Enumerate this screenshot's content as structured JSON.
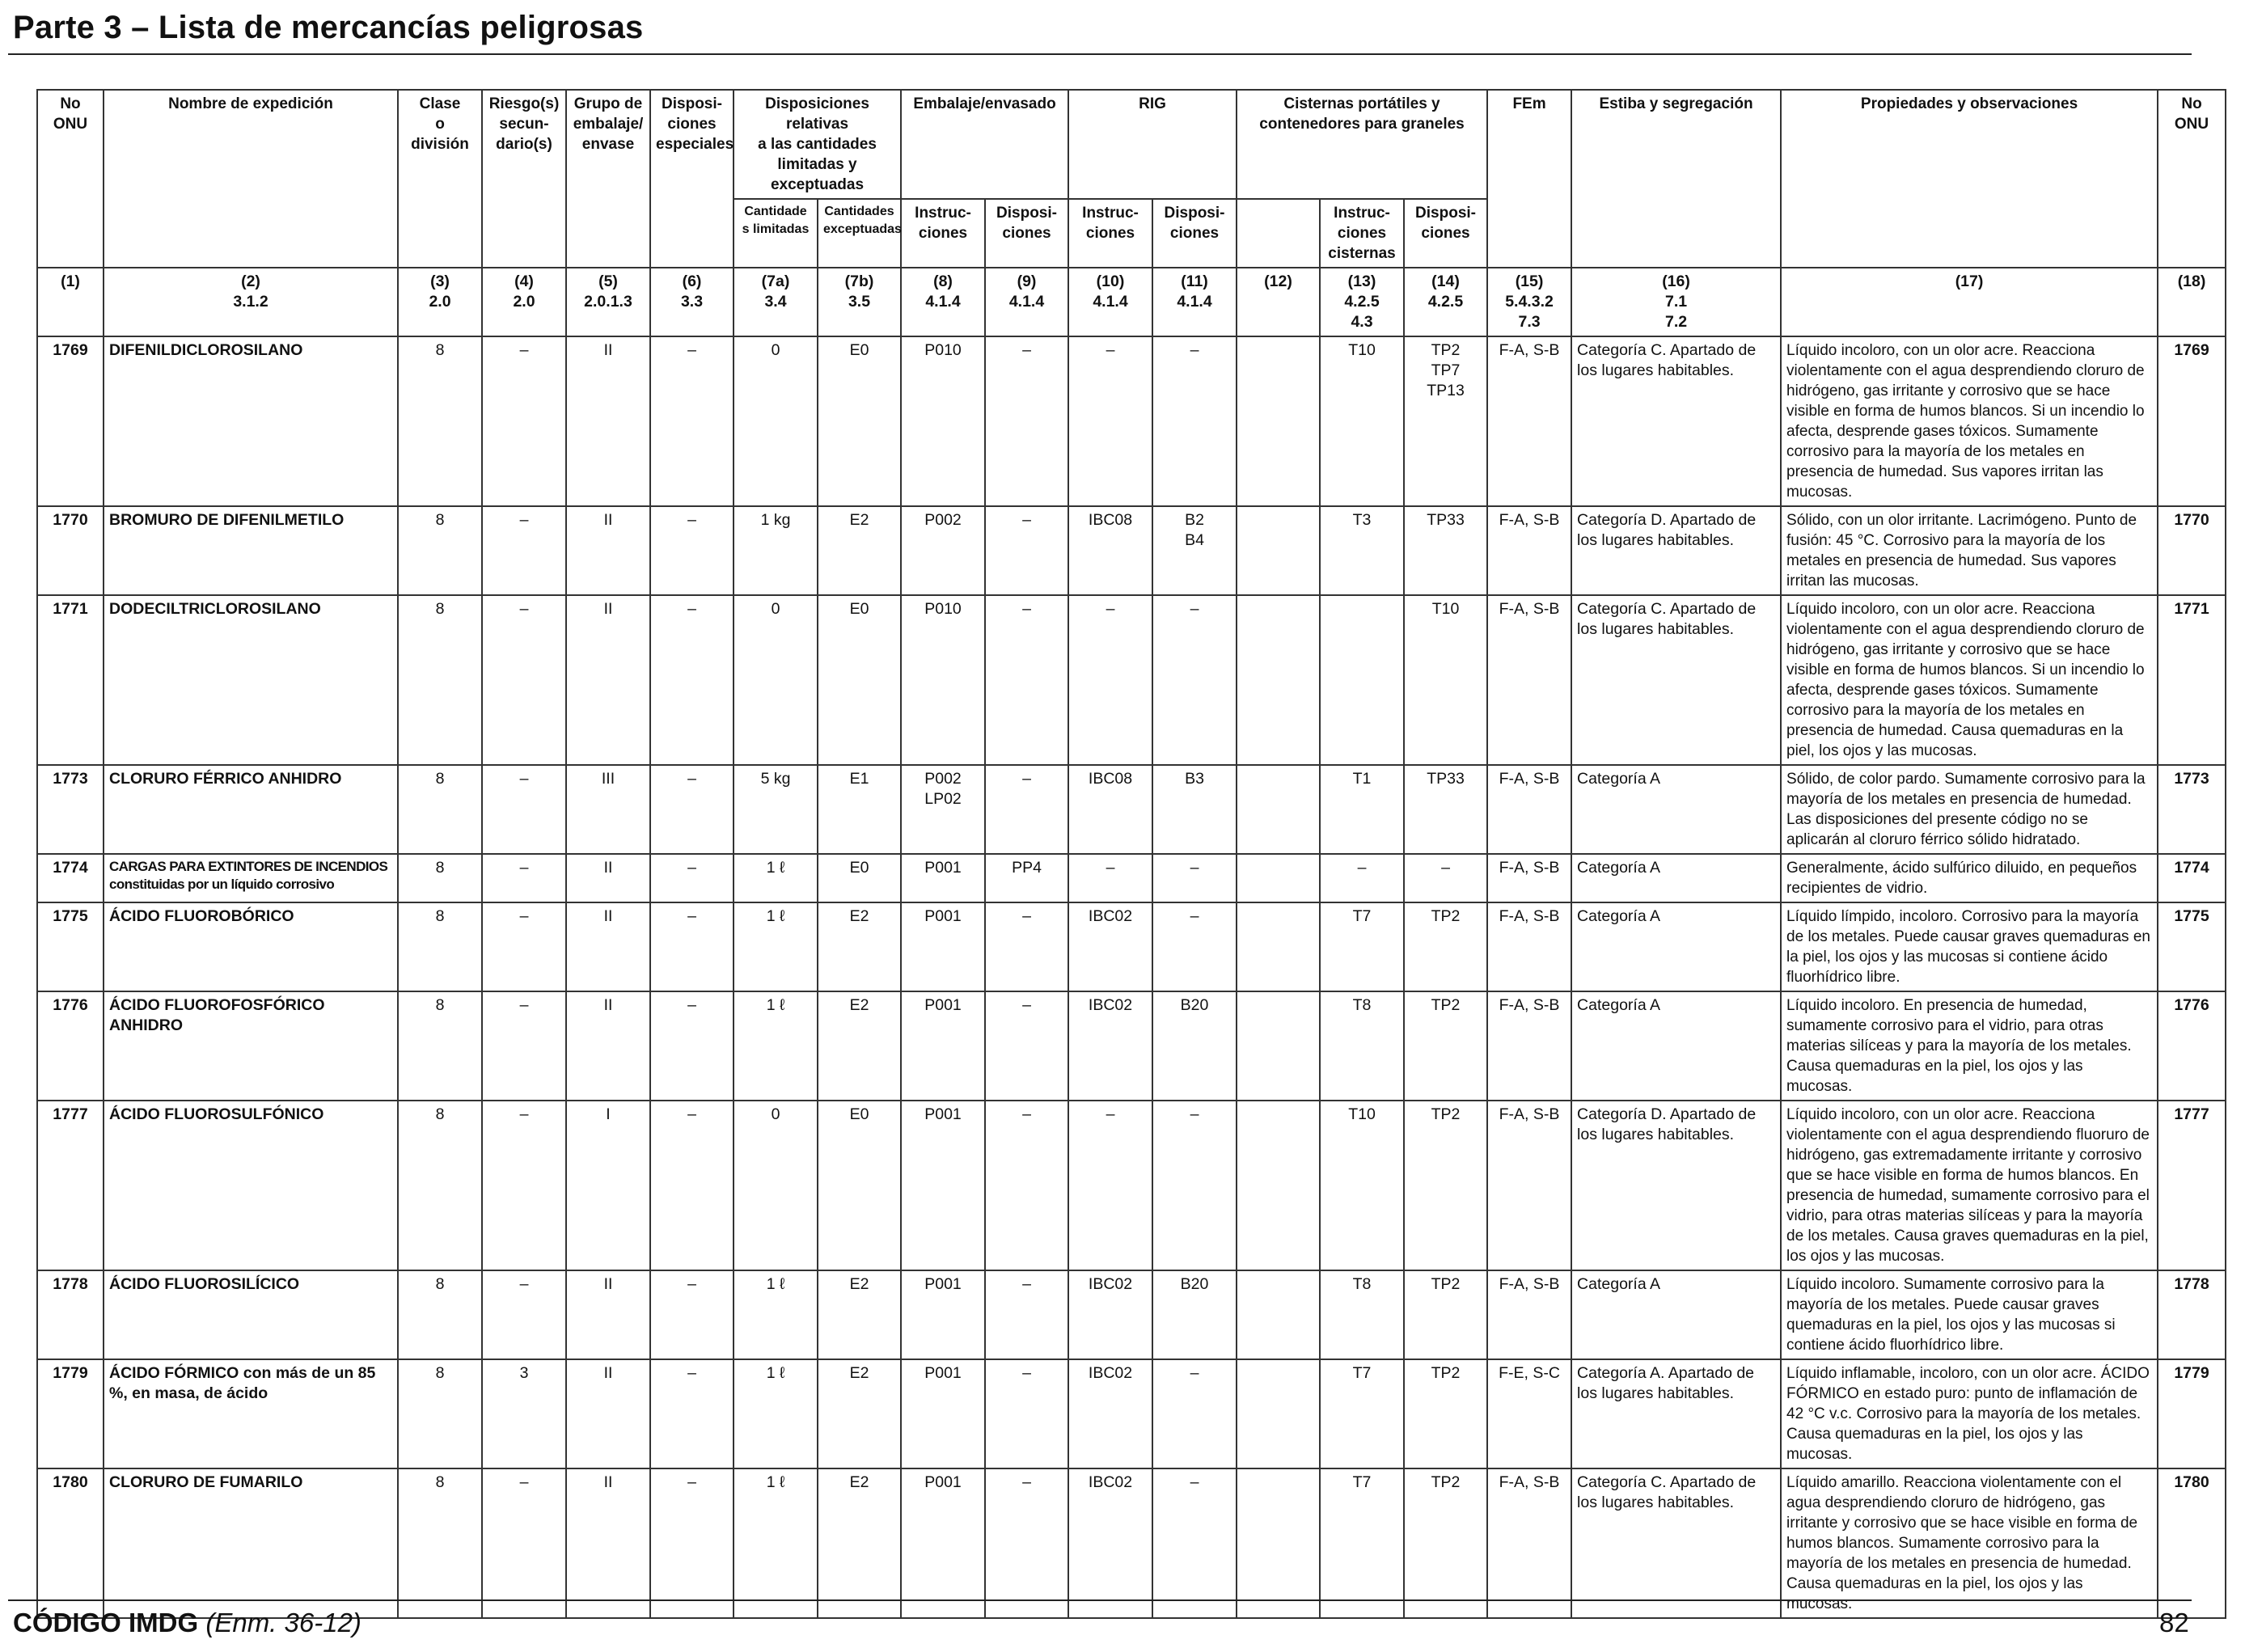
{
  "page_title": "Parte 3 – Lista de mercancías peligrosas",
  "headers": {
    "un_no": "No\nONU",
    "shipping_name": "Nombre de expedición",
    "class": "Clase\no\ndivisión",
    "subsidiary_risk": "Riesgo(s)\nsecun-\ndario(s)",
    "packing_group": "Grupo de\nembalaje/\nenvase",
    "special_provisions": "Disposi-\nciones\nespeciales",
    "limited_excepted": "Disposiciones relativas\na las cantidades\nlimitadas y exceptuadas",
    "limited_quantities": "Cantidade\ns limitadas",
    "excepted_quantities": "Cantidades\nexceptuadas",
    "packing": "Embalaje/envasado",
    "packing_instructions": "Instruc-\nciones",
    "packing_provisions": "Disposi-\nciones",
    "ibc": "RIG",
    "ibc_instructions": "Instruc-\nciones",
    "ibc_provisions": "Disposi-\nciones",
    "tanks": "Cisternas portátiles y\ncontenedores para graneles",
    "tank_instructions": "Instruc-\nciones\ncisternas",
    "tank_provisions": "Disposi-\nciones",
    "ems": "FEm",
    "stowage": "Estiba y segregación",
    "properties": "Propiedades y observaciones",
    "un_no_end": "No\nONU"
  },
  "column_numbers": [
    "(1)",
    "(2)\n3.1.2",
    "(3)\n2.0",
    "(4)\n2.0",
    "(5)\n2.0.1.3",
    "(6)\n3.3",
    "(7a)\n3.4",
    "(7b)\n3.5",
    "(8)\n4.1.4",
    "(9)\n4.1.4",
    "(10)\n4.1.4",
    "(11)\n4.1.4",
    "(12)",
    "(13)\n4.2.5\n4.3",
    "(14)\n4.2.5",
    "(15)\n5.4.3.2\n7.3",
    "(16)\n7.1\n7.2",
    "(17)",
    "(18)"
  ],
  "rows": [
    {
      "un": "1769",
      "name": "DIFENILDICLOROSILANO",
      "class": "8",
      "sub": "–",
      "pg": "II",
      "sp": "–",
      "lq": "0",
      "eq": "E0",
      "pi": "P010",
      "pp": "–",
      "ibc_i": "–",
      "ibc_p": "–",
      "c12": "",
      "tank_i": "T10",
      "tank_p": "TP2\nTP7\nTP13",
      "ems": "F-A, S-B",
      "stow": "Categoría C. Apartado de los lugares habitables.",
      "props": "Líquido incoloro, con un olor acre. Reacciona violentamente con el agua desprendiendo cloruro de hidrógeno, gas irritante y corrosivo que se hace visible en forma de humos blancos. Si un incendio lo afecta, desprende gases tóxicos. Sumamente corrosivo para la mayoría de los metales en presencia de humedad. Sus vapores irritan las mucosas.",
      "un_end": "1769"
    },
    {
      "un": "1770",
      "name": "BROMURO DE DIFENILMETILO",
      "class": "8",
      "sub": "–",
      "pg": "II",
      "sp": "–",
      "lq": "1 kg",
      "eq": "E2",
      "pi": "P002",
      "pp": "–",
      "ibc_i": "IBC08",
      "ibc_p": "B2\nB4",
      "c12": "",
      "tank_i": "T3",
      "tank_p": "TP33",
      "ems": "F-A, S-B",
      "stow": "Categoría D. Apartado de los lugares habitables.",
      "props": "Sólido, con un olor irritante. Lacrimógeno. Punto de fusión: 45 °C. Corrosivo para la mayoría de los metales en presencia de humedad. Sus vapores irritan las mucosas.",
      "un_end": "1770"
    },
    {
      "un": "1771",
      "name": "DODECILTRICLOROSILANO",
      "class": "8",
      "sub": "–",
      "pg": "II",
      "sp": "–",
      "lq": "0",
      "eq": "E0",
      "pi": "P010",
      "pp": "–",
      "ibc_i": "–",
      "ibc_p": "–",
      "c12": "",
      "tank_i": "",
      "tank_p": "T10",
      "ems": "F-A, S-B",
      "stow": "Categoría C. Apartado de los lugares habitables.",
      "props": "Líquido incoloro, con un olor acre. Reacciona violentamente con el agua desprendiendo cloruro de hidrógeno, gas irritante y corrosivo que se hace visible en forma de humos blancos. Si un incendio lo afecta, desprende gases tóxicos. Sumamente corrosivo para la mayoría de los metales en presencia de humedad. Causa quemaduras en la piel, los ojos y las mucosas.",
      "un_end": "1771"
    },
    {
      "un": "1773",
      "name": "CLORURO FÉRRICO ANHIDRO",
      "class": "8",
      "sub": "–",
      "pg": "III",
      "sp": "–",
      "lq": "5 kg",
      "eq": "E1",
      "pi": "P002\nLP02",
      "pp": "–",
      "ibc_i": "IBC08",
      "ibc_p": "B3",
      "c12": "",
      "tank_i": "T1",
      "tank_p": "TP33",
      "ems": "F-A, S-B",
      "stow": "Categoría A",
      "props": "Sólido, de color pardo. Sumamente corrosivo para la mayoría de los metales en presencia de humedad. Las disposiciones del presente código no se aplicarán al cloruro férrico sólido hidratado.",
      "un_end": "1773"
    },
    {
      "un": "1774",
      "name": "CARGAS PARA EXTINTORES DE INCENDIOS constituidas por un líquido corrosivo",
      "class": "8",
      "sub": "–",
      "pg": "II",
      "sp": "–",
      "lq": "1 ℓ",
      "eq": "E0",
      "pi": "P001",
      "pp": "PP4",
      "ibc_i": "–",
      "ibc_p": "–",
      "c12": "",
      "tank_i": "–",
      "tank_p": "–",
      "ems": "F-A, S-B",
      "stow": "Categoría A",
      "props": "Generalmente, ácido sulfúrico diluido, en pequeños recipientes de vidrio.",
      "un_end": "1774"
    },
    {
      "un": "1775",
      "name": "ÁCIDO FLUOROBÓRICO",
      "class": "8",
      "sub": "–",
      "pg": "II",
      "sp": "–",
      "lq": "1 ℓ",
      "eq": "E2",
      "pi": "P001",
      "pp": "–",
      "ibc_i": "IBC02",
      "ibc_p": "–",
      "c12": "",
      "tank_i": "T7",
      "tank_p": "TP2",
      "ems": "F-A, S-B",
      "stow": "Categoría A",
      "props": "Líquido límpido, incoloro. Corrosivo para la mayoría de los metales. Puede causar graves quemaduras en la piel, los ojos y las mucosas si contiene ácido fluorhídrico libre.",
      "un_end": "1775"
    },
    {
      "un": "1776",
      "name": "ÁCIDO FLUOROFOSFÓRICO ANHIDRO",
      "class": "8",
      "sub": "–",
      "pg": "II",
      "sp": "–",
      "lq": "1 ℓ",
      "eq": "E2",
      "pi": "P001",
      "pp": "–",
      "ibc_i": "IBC02",
      "ibc_p": "B20",
      "c12": "",
      "tank_i": "T8",
      "tank_p": "TP2",
      "ems": "F-A, S-B",
      "stow": "Categoría A",
      "props": "Líquido incoloro. En presencia de humedad, sumamente corrosivo para el vidrio, para otras materias silíceas y para la mayoría de los metales. Causa quemaduras en la piel, los ojos y las mucosas.",
      "un_end": "1776"
    },
    {
      "un": "1777",
      "name": "ÁCIDO FLUOROSULFÓNICO",
      "class": "8",
      "sub": "–",
      "pg": "I",
      "sp": "–",
      "lq": "0",
      "eq": "E0",
      "pi": "P001",
      "pp": "–",
      "ibc_i": "–",
      "ibc_p": "–",
      "c12": "",
      "tank_i": "T10",
      "tank_p": "TP2",
      "ems": "F-A, S-B",
      "stow": "Categoría D. Apartado de los lugares habitables.",
      "props": "Líquido incoloro, con un olor acre. Reacciona violentamente con el agua desprendiendo fluoruro de hidrógeno, gas extremadamente irritante y corrosivo que se hace visible en forma de humos blancos. En presencia de humedad, sumamente corrosivo para el vidrio, para otras materias silíceas y para la mayoría de los metales. Causa graves quemaduras en la piel, los ojos y las mucosas.",
      "un_end": "1777"
    },
    {
      "un": "1778",
      "name": "ÁCIDO FLUOROSILÍCICO",
      "class": "8",
      "sub": "–",
      "pg": "II",
      "sp": "–",
      "lq": "1 ℓ",
      "eq": "E2",
      "pi": "P001",
      "pp": "–",
      "ibc_i": "IBC02",
      "ibc_p": "B20",
      "c12": "",
      "tank_i": "T8",
      "tank_p": "TP2",
      "ems": "F-A, S-B",
      "stow": "Categoría A",
      "props": "Líquido incoloro. Sumamente corrosivo para la mayoría de los metales. Puede causar graves quemaduras en la piel, los ojos y las mucosas si contiene ácido fluorhídrico libre.",
      "un_end": "1778"
    },
    {
      "un": "1779",
      "name": "ÁCIDO FÓRMICO con más de un 85 %, en masa, de ácido",
      "class": "8",
      "sub": "3",
      "pg": "II",
      "sp": "–",
      "lq": "1 ℓ",
      "eq": "E2",
      "pi": "P001",
      "pp": "–",
      "ibc_i": "IBC02",
      "ibc_p": "–",
      "c12": "",
      "tank_i": "T7",
      "tank_p": "TP2",
      "ems": "F-E, S-C",
      "stow": "Categoría A. Apartado de los lugares habitables.",
      "props": "Líquido inflamable, incoloro, con un olor acre. ÁCIDO FÓRMICO en estado puro: punto de inflamación de 42 °C v.c. Corrosivo para la mayoría de los metales. Causa quemaduras en la piel, los ojos y las mucosas.",
      "un_end": "1779"
    },
    {
      "un": "1780",
      "name": "CLORURO DE FUMARILO",
      "class": "8",
      "sub": "–",
      "pg": "II",
      "sp": "–",
      "lq": "1 ℓ",
      "eq": "E2",
      "pi": "P001",
      "pp": "–",
      "ibc_i": "IBC02",
      "ibc_p": "–",
      "c12": "",
      "tank_i": "T7",
      "tank_p": "TP2",
      "ems": "F-A, S-B",
      "stow": "Categoría C. Apartado de los lugares habitables.",
      "props": "Líquido amarillo. Reacciona violentamente con el agua desprendiendo cloruro de hidrógeno, gas irritante y corrosivo que se hace visible en forma de humos blancos. Sumamente corrosivo para la mayoría de los metales en presencia de humedad. Causa quemaduras en la piel, los ojos y las mucosas.",
      "un_end": "1780"
    }
  ],
  "footer": {
    "code": "CÓDIGO IMDG",
    "amendment": "(Enm. 36-12)",
    "page_number": "82"
  }
}
